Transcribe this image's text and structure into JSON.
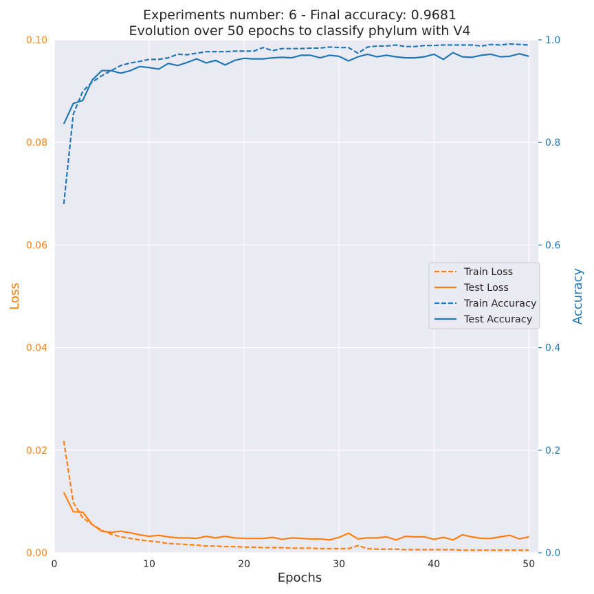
{
  "chart_data": {
    "type": "line",
    "title_lines": [
      "Experiments number: 6 - Final accuracy: 0.9681",
      "Evolution over 50 epochs to classify phylum with V4"
    ],
    "xlabel": "Epochs",
    "ylabel_left": "Loss",
    "ylabel_right": "Accuracy",
    "xlim": [
      0,
      51
    ],
    "ylim_left": [
      0,
      0.1
    ],
    "ylim_right": [
      0,
      1.0
    ],
    "xticks": [
      0,
      10,
      20,
      30,
      40,
      50
    ],
    "xtick_labels": [
      "0",
      "10",
      "20",
      "30",
      "40",
      "50"
    ],
    "yticks_left": [
      0,
      0.02,
      0.04,
      0.06,
      0.08,
      0.1
    ],
    "ytick_labels_left": [
      "0.00",
      "0.02",
      "0.04",
      "0.06",
      "0.08",
      "0.10"
    ],
    "yticks_right": [
      0,
      0.2,
      0.4,
      0.6,
      0.8,
      1.0
    ],
    "ytick_labels_right": [
      "0.0",
      "0.2",
      "0.4",
      "0.6",
      "0.8",
      "1.0"
    ],
    "grid": true,
    "legend_position": "center-right",
    "colors": {
      "loss": "#ff7f0e",
      "accuracy": "#1f77b4",
      "background": "#eaeaf2",
      "text": "#262626"
    },
    "x": [
      1,
      2,
      3,
      4,
      5,
      6,
      7,
      8,
      9,
      10,
      11,
      12,
      13,
      14,
      15,
      16,
      17,
      18,
      19,
      20,
      21,
      22,
      23,
      24,
      25,
      26,
      27,
      28,
      29,
      30,
      31,
      32,
      33,
      34,
      35,
      36,
      37,
      38,
      39,
      40,
      41,
      42,
      43,
      44,
      45,
      46,
      47,
      48,
      49,
      50
    ],
    "series": [
      {
        "name": "Train Loss",
        "axis": "left",
        "color": "#ff7f0e",
        "style": "dashed",
        "values": [
          0.0218,
          0.0098,
          0.0068,
          0.0055,
          0.0044,
          0.0036,
          0.0031,
          0.0028,
          0.0025,
          0.0023,
          0.0021,
          0.0018,
          0.0017,
          0.0016,
          0.0015,
          0.0013,
          0.0013,
          0.0012,
          0.0012,
          0.0011,
          0.0011,
          0.001,
          0.001,
          0.001,
          0.0009,
          0.0009,
          0.0009,
          0.0008,
          0.0008,
          0.0008,
          0.0008,
          0.0014,
          0.0008,
          0.0007,
          0.0007,
          0.0007,
          0.0006,
          0.0006,
          0.0006,
          0.0006,
          0.0006,
          0.0006,
          0.0005,
          0.0005,
          0.0005,
          0.0005,
          0.0005,
          0.0005,
          0.0005,
          0.0005
        ]
      },
      {
        "name": "Test Loss",
        "axis": "left",
        "color": "#ff7f0e",
        "style": "solid",
        "values": [
          0.0118,
          0.008,
          0.0079,
          0.0055,
          0.0042,
          0.004,
          0.0042,
          0.0039,
          0.0035,
          0.0032,
          0.0034,
          0.0031,
          0.0029,
          0.0029,
          0.0028,
          0.0032,
          0.0029,
          0.0032,
          0.0029,
          0.0028,
          0.0028,
          0.0028,
          0.003,
          0.0026,
          0.0029,
          0.0028,
          0.0027,
          0.0027,
          0.0025,
          0.003,
          0.0038,
          0.0027,
          0.0029,
          0.0029,
          0.0031,
          0.0025,
          0.0032,
          0.0031,
          0.0031,
          0.0026,
          0.003,
          0.0025,
          0.0035,
          0.0031,
          0.0028,
          0.0028,
          0.0031,
          0.0034,
          0.0027,
          0.0031
        ]
      },
      {
        "name": "Train Accuracy",
        "axis": "right",
        "color": "#1f77b4",
        "style": "dashed",
        "values": [
          0.68,
          0.855,
          0.9,
          0.918,
          0.93,
          0.94,
          0.95,
          0.955,
          0.958,
          0.962,
          0.962,
          0.965,
          0.972,
          0.971,
          0.974,
          0.977,
          0.977,
          0.977,
          0.978,
          0.978,
          0.978,
          0.985,
          0.979,
          0.983,
          0.983,
          0.983,
          0.984,
          0.984,
          0.986,
          0.985,
          0.985,
          0.974,
          0.986,
          0.988,
          0.988,
          0.99,
          0.987,
          0.987,
          0.989,
          0.989,
          0.99,
          0.99,
          0.99,
          0.99,
          0.988,
          0.991,
          0.99,
          0.992,
          0.991,
          0.99
        ]
      },
      {
        "name": "Test Accuracy",
        "axis": "right",
        "color": "#1f77b4",
        "style": "solid",
        "values": [
          0.836,
          0.876,
          0.882,
          0.922,
          0.94,
          0.94,
          0.935,
          0.94,
          0.948,
          0.946,
          0.943,
          0.954,
          0.95,
          0.956,
          0.963,
          0.955,
          0.96,
          0.951,
          0.96,
          0.964,
          0.963,
          0.963,
          0.965,
          0.966,
          0.965,
          0.97,
          0.97,
          0.965,
          0.97,
          0.968,
          0.959,
          0.967,
          0.972,
          0.967,
          0.97,
          0.967,
          0.965,
          0.965,
          0.967,
          0.972,
          0.962,
          0.975,
          0.967,
          0.966,
          0.97,
          0.972,
          0.967,
          0.968,
          0.973,
          0.968
        ]
      }
    ]
  }
}
